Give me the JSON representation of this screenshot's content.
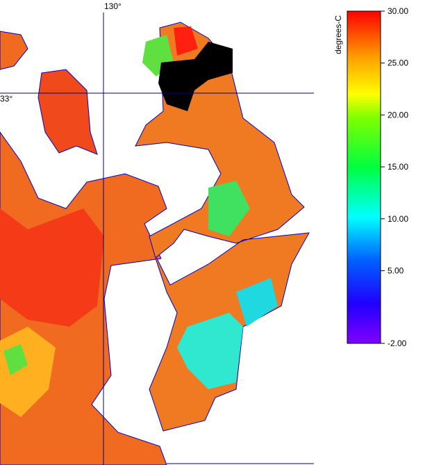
{
  "map": {
    "graticule_labels": [
      "130°",
      "33°"
    ]
  },
  "colorbar": {
    "title": "degrees-C",
    "range": [
      -2,
      30
    ],
    "ticks": [
      {
        "value": 30,
        "label": "30.00"
      },
      {
        "value": 25,
        "label": "25.00"
      },
      {
        "value": 20,
        "label": "20.00"
      },
      {
        "value": 15,
        "label": "15.00"
      },
      {
        "value": 10,
        "label": "10.00"
      },
      {
        "value": 5,
        "label": "5.00"
      },
      {
        "value": -2,
        "label": "-2.00"
      }
    ]
  }
}
